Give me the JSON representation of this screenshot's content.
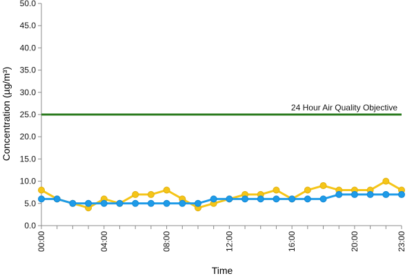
{
  "chart_data": {
    "type": "line",
    "title": "",
    "xlabel": "Time",
    "ylabel": "Concentration (µg/m³)",
    "ylim": [
      0,
      50
    ],
    "y_ticks": [
      "0.0",
      "5.0",
      "10.0",
      "15.0",
      "20.0",
      "25.0",
      "30.0",
      "35.0",
      "40.0",
      "45.0",
      "50.0"
    ],
    "x": [
      "00:00",
      "01:00",
      "02:00",
      "03:00",
      "04:00",
      "05:00",
      "06:00",
      "07:00",
      "08:00",
      "09:00",
      "10:00",
      "11:00",
      "12:00",
      "13:00",
      "14:00",
      "15:00",
      "16:00",
      "17:00",
      "18:00",
      "19:00",
      "20:00",
      "21:00",
      "22:00",
      "23:00"
    ],
    "x_tick_labels": [
      "00:00",
      "04:00",
      "08:00",
      "12:00",
      "16:00",
      "20:00",
      "23:00"
    ],
    "grid": false,
    "legend": "none",
    "series": [
      {
        "color": "#f5c518",
        "stroke": "#e0b010",
        "values": [
          8,
          6,
          5,
          4,
          6,
          5,
          7,
          7,
          8,
          6,
          4,
          5,
          6,
          7,
          7,
          8,
          6,
          8,
          9,
          8,
          8,
          8,
          10,
          8
        ]
      },
      {
        "color": "#1e9be8",
        "stroke": "#1488d4",
        "values": [
          6,
          6,
          5,
          5,
          5,
          5,
          5,
          5,
          5,
          5,
          5,
          6,
          6,
          6,
          6,
          6,
          6,
          6,
          6,
          7,
          7,
          7,
          7,
          7
        ]
      }
    ],
    "reference_line": {
      "value": 25,
      "label": "24 Hour Air Quality Objective",
      "color": "#2a7a1e"
    }
  }
}
